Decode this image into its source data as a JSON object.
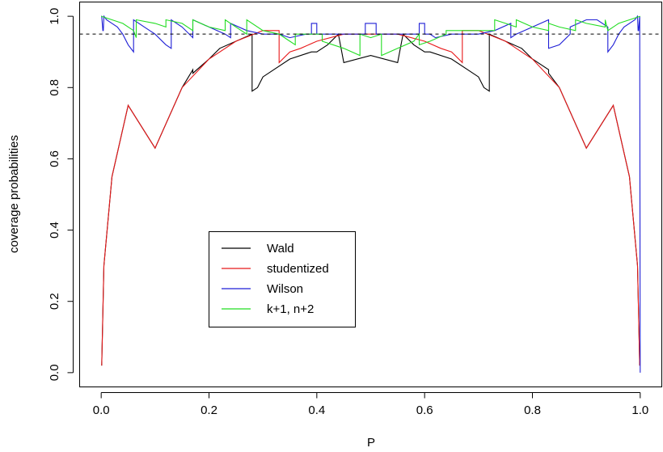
{
  "chart_data": {
    "type": "line",
    "title": "",
    "xlabel": "P",
    "ylabel": "coverage probabilities",
    "xlim": [
      -0.04,
      1.04
    ],
    "ylim": [
      -0.04,
      1.04
    ],
    "x_ticks": [
      0.0,
      0.2,
      0.4,
      0.6,
      0.8,
      1.0
    ],
    "x_tick_labels": [
      "0.0",
      "0.2",
      "0.4",
      "0.6",
      "0.8",
      "1.0"
    ],
    "y_ticks": [
      0.0,
      0.2,
      0.4,
      0.6,
      0.8,
      1.0
    ],
    "y_tick_labels": [
      "0.0",
      "0.2",
      "0.4",
      "0.6",
      "0.8",
      "1.0"
    ],
    "grid": false,
    "legend_position": "lower-left-center",
    "reference_line": {
      "y": 0.95,
      "style": "dashed",
      "color": "#000000"
    },
    "series": [
      {
        "name": "Wald",
        "color": "#000000",
        "x": [
          0.001,
          0.005,
          0.02,
          0.05,
          0.1,
          0.15,
          0.17,
          0.17,
          0.2,
          0.22,
          0.25,
          0.28,
          0.28,
          0.29,
          0.3,
          0.35,
          0.39,
          0.4,
          0.42,
          0.44,
          0.45,
          0.45,
          0.5,
          0.55,
          0.55,
          0.56,
          0.58,
          0.6,
          0.61,
          0.65,
          0.7,
          0.71,
          0.72,
          0.72,
          0.75,
          0.78,
          0.8,
          0.83,
          0.83,
          0.85,
          0.9,
          0.95,
          0.98,
          0.995,
          0.999
        ],
        "y": [
          0.02,
          0.3,
          0.55,
          0.75,
          0.63,
          0.8,
          0.85,
          0.84,
          0.88,
          0.91,
          0.93,
          0.95,
          0.79,
          0.8,
          0.83,
          0.88,
          0.9,
          0.9,
          0.92,
          0.95,
          0.87,
          0.87,
          0.89,
          0.87,
          0.87,
          0.95,
          0.92,
          0.9,
          0.9,
          0.88,
          0.83,
          0.8,
          0.79,
          0.95,
          0.93,
          0.91,
          0.88,
          0.85,
          0.84,
          0.8,
          0.63,
          0.75,
          0.55,
          0.3,
          0.02
        ]
      },
      {
        "name": "studentized",
        "color": "#e8191a",
        "x": [
          0.001,
          0.005,
          0.02,
          0.05,
          0.1,
          0.15,
          0.2,
          0.25,
          0.3,
          0.32,
          0.33,
          0.33,
          0.35,
          0.37,
          0.4,
          0.45,
          0.5,
          0.55,
          0.6,
          0.63,
          0.65,
          0.67,
          0.67,
          0.68,
          0.7,
          0.75,
          0.8,
          0.85,
          0.9,
          0.95,
          0.98,
          0.995,
          0.999
        ],
        "y": [
          0.02,
          0.3,
          0.55,
          0.75,
          0.63,
          0.8,
          0.88,
          0.93,
          0.96,
          0.96,
          0.96,
          0.87,
          0.9,
          0.91,
          0.93,
          0.95,
          0.95,
          0.95,
          0.93,
          0.91,
          0.9,
          0.87,
          0.96,
          0.96,
          0.96,
          0.93,
          0.88,
          0.8,
          0.63,
          0.75,
          0.55,
          0.3,
          0.02
        ]
      },
      {
        "name": "Wilson",
        "color": "#1f1fd6",
        "x": [
          0.0,
          0.001,
          0.003,
          0.004,
          0.005,
          0.01,
          0.02,
          0.03,
          0.04,
          0.05,
          0.06,
          0.06,
          0.08,
          0.1,
          0.12,
          0.13,
          0.13,
          0.15,
          0.17,
          0.17,
          0.2,
          0.23,
          0.24,
          0.24,
          0.27,
          0.3,
          0.33,
          0.35,
          0.38,
          0.39,
          0.39,
          0.4,
          0.4,
          0.42,
          0.45,
          0.48,
          0.49,
          0.49,
          0.51,
          0.51,
          0.52,
          0.55,
          0.58,
          0.59,
          0.59,
          0.6,
          0.6,
          0.61,
          0.62,
          0.65,
          0.67,
          0.7,
          0.73,
          0.76,
          0.76,
          0.77,
          0.8,
          0.83,
          0.83,
          0.85,
          0.87,
          0.87,
          0.9,
          0.92,
          0.94,
          0.94,
          0.95,
          0.96,
          0.97,
          0.98,
          0.99,
          0.995,
          0.996,
          0.997,
          0.999,
          1.0
        ],
        "y": [
          1.0,
          1.0,
          0.96,
          0.96,
          1.0,
          0.99,
          0.98,
          0.97,
          0.95,
          0.92,
          0.9,
          0.99,
          0.97,
          0.95,
          0.92,
          0.91,
          0.99,
          0.97,
          0.94,
          0.99,
          0.97,
          0.95,
          0.94,
          0.98,
          0.96,
          0.95,
          0.95,
          0.94,
          0.95,
          0.95,
          0.98,
          0.98,
          0.95,
          0.95,
          0.95,
          0.95,
          0.95,
          0.98,
          0.98,
          0.95,
          0.95,
          0.95,
          0.95,
          0.95,
          0.98,
          0.98,
          0.95,
          0.95,
          0.94,
          0.95,
          0.95,
          0.95,
          0.96,
          0.98,
          0.94,
          0.95,
          0.97,
          0.99,
          0.91,
          0.92,
          0.95,
          0.97,
          0.99,
          0.99,
          0.97,
          0.9,
          0.92,
          0.95,
          0.97,
          0.98,
          0.99,
          1.0,
          0.96,
          0.96,
          1.0,
          0.0
        ]
      },
      {
        "name": "k+1, n+2",
        "color": "#22dd22",
        "x": [
          0.0,
          0.02,
          0.04,
          0.06,
          0.065,
          0.065,
          0.1,
          0.12,
          0.12,
          0.15,
          0.17,
          0.17,
          0.2,
          0.23,
          0.23,
          0.25,
          0.27,
          0.27,
          0.3,
          0.33,
          0.35,
          0.36,
          0.36,
          0.38,
          0.41,
          0.41,
          0.45,
          0.48,
          0.48,
          0.5,
          0.52,
          0.52,
          0.55,
          0.58,
          0.59,
          0.59,
          0.61,
          0.64,
          0.64,
          0.65,
          0.67,
          0.7,
          0.73,
          0.73,
          0.75,
          0.77,
          0.77,
          0.8,
          0.83,
          0.83,
          0.85,
          0.88,
          0.88,
          0.9,
          0.935,
          0.935,
          0.94,
          0.96,
          0.98,
          1.0
        ],
        "y": [
          1.0,
          0.99,
          0.98,
          0.96,
          0.94,
          0.99,
          0.98,
          0.97,
          0.99,
          0.98,
          0.96,
          0.99,
          0.97,
          0.96,
          0.99,
          0.97,
          0.95,
          0.99,
          0.96,
          0.95,
          0.93,
          0.92,
          0.95,
          0.95,
          0.95,
          0.93,
          0.91,
          0.89,
          0.95,
          0.94,
          0.95,
          0.89,
          0.91,
          0.93,
          0.95,
          0.92,
          0.93,
          0.95,
          0.96,
          0.96,
          0.96,
          0.96,
          0.96,
          0.99,
          0.98,
          0.97,
          0.99,
          0.97,
          0.96,
          0.98,
          0.97,
          0.96,
          0.99,
          0.98,
          0.97,
          0.99,
          0.96,
          0.98,
          0.99,
          1.0
        ]
      }
    ]
  }
}
